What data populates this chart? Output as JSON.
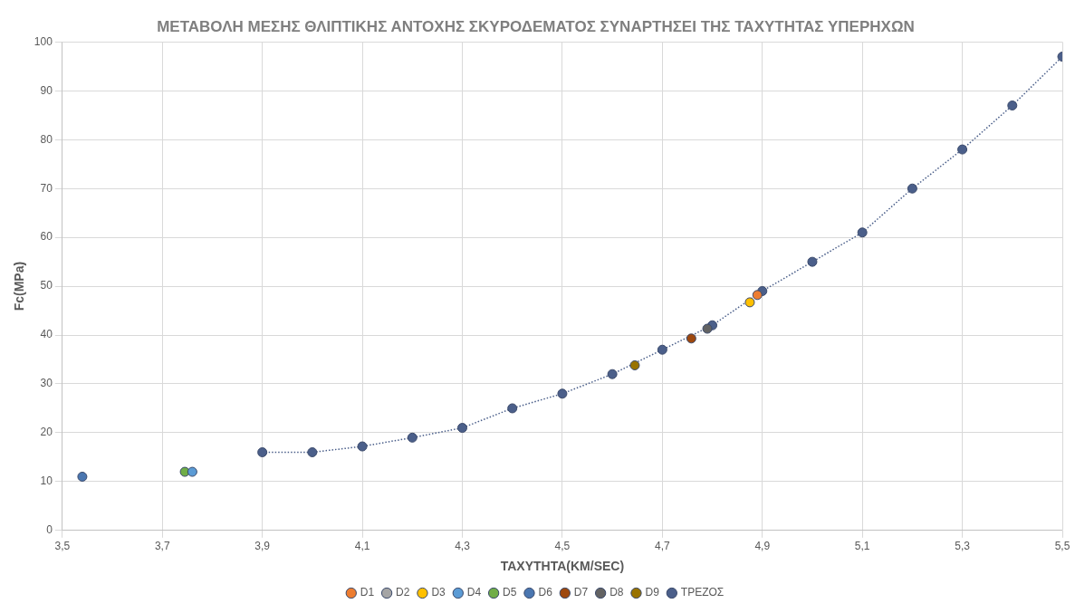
{
  "chart_data": {
    "type": "scatter",
    "title": "ΜΕΤΑΒΟΛΗ ΜΕΣΗΣ ΘΛΙΠΤΙΚΗΣ ΑΝΤΟΧΗΣ ΣΚΥΡΟΔΕΜΑΤΟΣ ΣΥΝΑΡΤΗΣΕΙ ΤΗΣ ΤΑΧΥΤΗΤΑΣ ΥΠΕΡΗΧΩΝ",
    "xlabel": "ΤΑΧΥΤΗΤΑ(KM/SEC)",
    "ylabel": "Fc(MPa)",
    "xlim": [
      3.5,
      5.5
    ],
    "xticks": [
      {
        "value": 3.5,
        "label": "3,5"
      },
      {
        "value": 3.7,
        "label": "3,7"
      },
      {
        "value": 3.9,
        "label": "3,9"
      },
      {
        "value": 4.1,
        "label": "4,1"
      },
      {
        "value": 4.3,
        "label": "4,3"
      },
      {
        "value": 4.5,
        "label": "4,5"
      },
      {
        "value": 4.7,
        "label": "4,7"
      },
      {
        "value": 4.9,
        "label": "4,9"
      },
      {
        "value": 5.1,
        "label": "5,1"
      },
      {
        "value": 5.3,
        "label": "5,3"
      },
      {
        "value": 5.5,
        "label": "5,5"
      }
    ],
    "ylim": [
      0,
      100
    ],
    "yticks": [
      0,
      10,
      20,
      30,
      40,
      50,
      60,
      70,
      80,
      90,
      100
    ],
    "grid": true,
    "legend": "bottom",
    "marker": "circle",
    "series": [
      {
        "name": "D1",
        "color": "#ed7d31",
        "x": [
          4.89
        ],
        "values": [
          48.2
        ]
      },
      {
        "name": "D2",
        "color": "#a5a5a5"
      },
      {
        "name": "D3",
        "color": "#ffc000",
        "x": [
          4.875
        ],
        "values": [
          46.7
        ]
      },
      {
        "name": "D4",
        "color": "#5b9bd5",
        "x": [
          3.76
        ],
        "values": [
          12
        ]
      },
      {
        "name": "D5",
        "color": "#70ad47",
        "x": [
          3.745
        ],
        "values": [
          12
        ]
      },
      {
        "name": "D6",
        "color": "#4a76b0",
        "x": [
          3.54
        ],
        "values": [
          11
        ]
      },
      {
        "name": "D7",
        "color": "#9e480e",
        "x": [
          4.758
        ],
        "values": [
          39.3
        ]
      },
      {
        "name": "D8",
        "color": "#636363",
        "x": [
          4.79
        ],
        "values": [
          41.3
        ]
      },
      {
        "name": "D9",
        "color": "#997300",
        "x": [
          4.645
        ],
        "values": [
          33.8
        ]
      },
      {
        "name": "ΤΡΕΖΟΣ",
        "color": "#4b5f8a",
        "type": "line",
        "line_style": "dotted",
        "x": [
          3.9,
          4.0,
          4.1,
          4.2,
          4.3,
          4.4,
          4.5,
          4.6,
          4.7,
          4.8,
          4.9,
          5.0,
          5.1,
          5.2,
          5.3,
          5.4,
          5.5
        ],
        "values": [
          16,
          16,
          17.2,
          19,
          21,
          25,
          28,
          32,
          37,
          42,
          49,
          55,
          61,
          70,
          78,
          87,
          97
        ]
      }
    ]
  }
}
